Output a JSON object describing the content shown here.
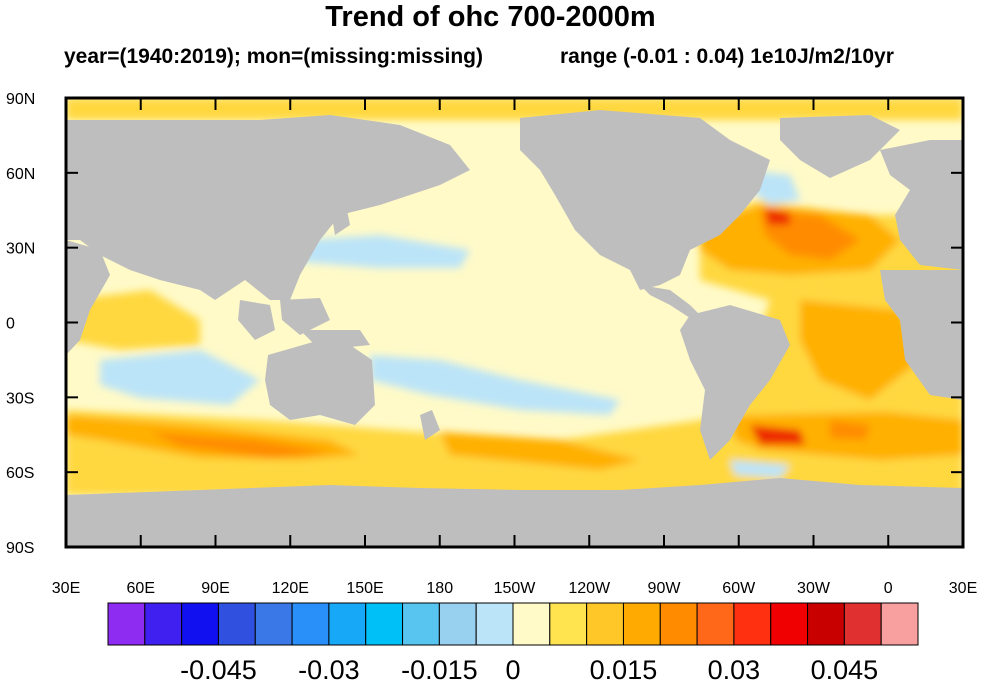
{
  "title": "Trend of ohc 700-2000m",
  "subtitle_left": "year=(1940:2019); mon=(missing:missing)",
  "subtitle_right": "range (-0.01 : 0.04) 1e10J/m2/10yr",
  "lat_labels": [
    "90N",
    "60N",
    "30N",
    "0",
    "30S",
    "60S",
    "90S"
  ],
  "lon_labels": [
    "30E",
    "60E",
    "90E",
    "120E",
    "150E",
    "180",
    "150W",
    "120W",
    "90W",
    "60W",
    "30W",
    "0",
    "30E"
  ],
  "colorbar": {
    "colors": [
      "#8f2cf2",
      "#4020f0",
      "#1010f0",
      "#3050e0",
      "#3a78e8",
      "#2890f8",
      "#18a8f8",
      "#00c0f8",
      "#58c4f0",
      "#98d0f0",
      "#bce4f8",
      "#fffac8",
      "#ffe450",
      "#ffc828",
      "#ffaa00",
      "#ff8c00",
      "#ff6818",
      "#ff3010",
      "#f00000",
      "#c80000",
      "#e03030",
      "#f8a0a0"
    ],
    "labels": [
      "-0.045",
      "-0.03",
      "-0.015",
      "0",
      "0.015",
      "0.03",
      "0.045"
    ]
  },
  "map_colors": {
    "land": "#bebebe",
    "ocean_base": "#fffac8",
    "light_yellow": "#fff0a0",
    "yellow": "#ffd840",
    "orange": "#ffb000",
    "dark_orange": "#ff8c00",
    "red": "#ee2a00",
    "light_blue": "#bce4f8",
    "blue": "#8ccaf0",
    "frame": "#000000"
  }
}
